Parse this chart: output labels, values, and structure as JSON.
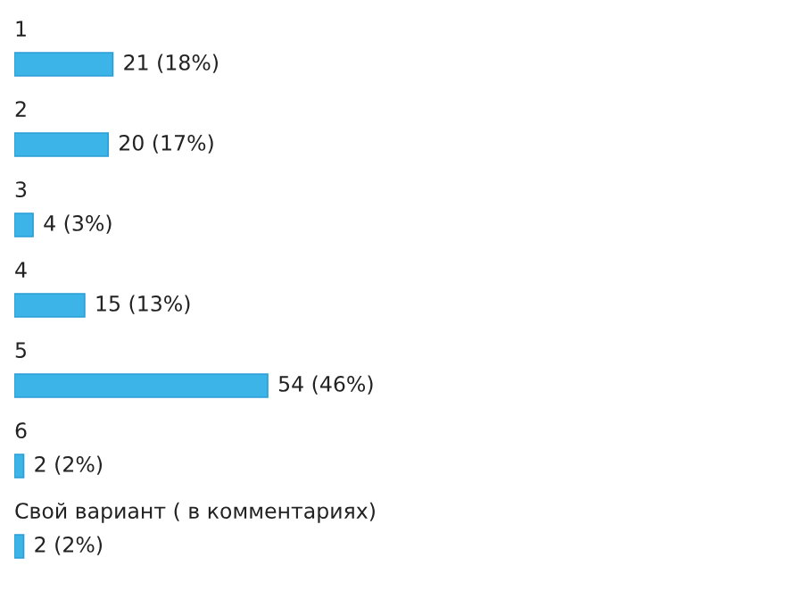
{
  "chart_data": {
    "type": "bar",
    "orientation": "horizontal",
    "categories": [
      "1",
      "2",
      "3",
      "4",
      "5",
      "6",
      "Свой вариант ( в комментариях)"
    ],
    "values": [
      21,
      20,
      4,
      15,
      54,
      2,
      2
    ],
    "value_labels": [
      "21 (18%)",
      "20 (17%)",
      "4 (3%)",
      "15 (13%)",
      "54 (46%)",
      "2 (2%)",
      "2 (2%)"
    ],
    "color": "#3cb4e8",
    "legend": false
  }
}
